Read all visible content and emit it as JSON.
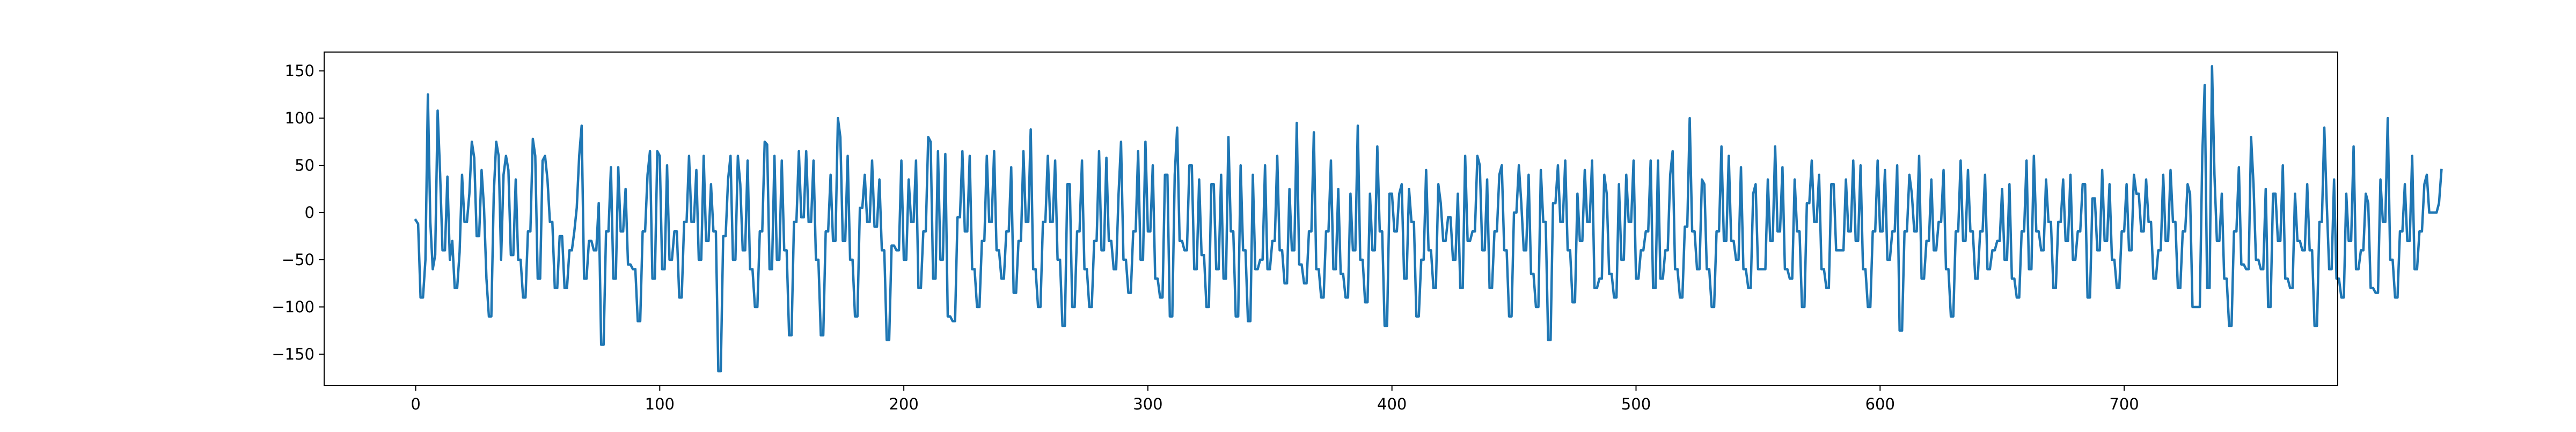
{
  "chart_data": {
    "type": "line",
    "title": "",
    "xlabel": "",
    "ylabel": "",
    "xlim": [
      -37.5,
      787.5
    ],
    "ylim": [
      -183,
      170
    ],
    "x_ticks": [
      0,
      100,
      200,
      300,
      400,
      500,
      600,
      700
    ],
    "y_ticks": [
      -150,
      -100,
      -50,
      0,
      50,
      100,
      150
    ],
    "x_tick_labels": [
      "0",
      "100",
      "200",
      "300",
      "400",
      "500",
      "600",
      "700"
    ],
    "y_tick_labels": [
      "−150",
      "−100",
      "−50",
      "0",
      "50",
      "100",
      "150"
    ],
    "grid": false,
    "legend": "none",
    "line_color": "#1f77b4",
    "series": [
      {
        "x_start": 0,
        "x_step": 1,
        "values": [
          -8,
          -12,
          -90,
          -90,
          -50,
          125,
          -10,
          -60,
          -45,
          108,
          42,
          -40,
          -40,
          38,
          -50,
          -30,
          -80,
          -80,
          -42,
          40,
          -10,
          -10,
          20,
          75,
          58,
          -25,
          -25,
          45,
          5,
          -70,
          -110,
          -110,
          20,
          75,
          60,
          -50,
          40,
          60,
          45,
          -45,
          -45,
          35,
          -50,
          -50,
          -90,
          -90,
          -20,
          -20,
          78,
          60,
          -70,
          -70,
          55,
          60,
          35,
          -10,
          -10,
          -80,
          -80,
          -25,
          -25,
          -80,
          -80,
          -40,
          -40,
          -20,
          5,
          60,
          92,
          -70,
          -70,
          -30,
          -30,
          -40,
          -40,
          10,
          -140,
          -140,
          -20,
          -20,
          48,
          -70,
          -70,
          48,
          -20,
          -20,
          25,
          -55,
          -55,
          -60,
          -60,
          -115,
          -115,
          -20,
          -20,
          40,
          65,
          -70,
          -70,
          65,
          60,
          -60,
          -60,
          50,
          -50,
          -50,
          -20,
          -20,
          -90,
          -90,
          -10,
          -10,
          60,
          -10,
          -10,
          45,
          -50,
          -50,
          60,
          -30,
          -30,
          30,
          -20,
          -20,
          -168,
          -168,
          -25,
          -25,
          35,
          60,
          -50,
          -50,
          60,
          30,
          -40,
          -40,
          55,
          -60,
          -60,
          -100,
          -100,
          -20,
          -20,
          75,
          72,
          -60,
          -60,
          60,
          -50,
          -50,
          55,
          -40,
          -40,
          -130,
          -130,
          -10,
          -10,
          65,
          -5,
          -5,
          65,
          -10,
          -10,
          55,
          -50,
          -50,
          -130,
          -130,
          -20,
          -20,
          40,
          -30,
          -30,
          100,
          80,
          -30,
          -30,
          60,
          -50,
          -50,
          -110,
          -110,
          5,
          5,
          40,
          -10,
          -10,
          55,
          -15,
          -15,
          35,
          -40,
          -40,
          -135,
          -135,
          -35,
          -35,
          -40,
          -40,
          55,
          -50,
          -50,
          35,
          -10,
          -10,
          55,
          -80,
          -80,
          -20,
          -20,
          80,
          75,
          -70,
          -70,
          65,
          -50,
          -50,
          62,
          -110,
          -110,
          -115,
          -115,
          -5,
          -5,
          65,
          -20,
          -20,
          60,
          -60,
          -60,
          -100,
          -100,
          -30,
          -30,
          60,
          -10,
          -10,
          65,
          -40,
          -40,
          -70,
          -70,
          -20,
          -20,
          48,
          -85,
          -85,
          -30,
          -30,
          65,
          -10,
          -10,
          88,
          -60,
          -60,
          -100,
          -100,
          -10,
          -10,
          60,
          -10,
          -10,
          55,
          -50,
          -50,
          -120,
          -120,
          30,
          30,
          -100,
          -100,
          -20,
          -20,
          55,
          -60,
          -60,
          -100,
          -100,
          -30,
          -30,
          65,
          -40,
          -40,
          58,
          -30,
          -30,
          -60,
          -60,
          20,
          75,
          -50,
          -50,
          -85,
          -85,
          -20,
          -20,
          65,
          -50,
          -50,
          75,
          -20,
          -20,
          50,
          -70,
          -70,
          -90,
          -90,
          40,
          40,
          -110,
          -110,
          40,
          90,
          -30,
          -30,
          -40,
          -40,
          50,
          50,
          -60,
          -60,
          35,
          -45,
          -45,
          -100,
          -100,
          30,
          30,
          -60,
          -60,
          40,
          -70,
          -70,
          80,
          -20,
          -20,
          -110,
          -110,
          50,
          -40,
          -40,
          -115,
          -115,
          40,
          -60,
          -60,
          -50,
          -50,
          50,
          -60,
          -60,
          -30,
          -30,
          60,
          -40,
          -40,
          -75,
          -75,
          25,
          -40,
          -40,
          95,
          -55,
          -55,
          -75,
          -75,
          -20,
          -20,
          85,
          -60,
          -60,
          -90,
          -90,
          -20,
          -20,
          55,
          -60,
          -60,
          25,
          -65,
          -65,
          -90,
          -90,
          20,
          -40,
          -40,
          92,
          -50,
          -50,
          -95,
          -95,
          20,
          -40,
          -40,
          70,
          -20,
          -20,
          -120,
          -120,
          20,
          20,
          -20,
          -20,
          20,
          30,
          -70,
          -70,
          25,
          -10,
          -10,
          -110,
          -110,
          -50,
          -50,
          45,
          -40,
          -40,
          -80,
          -80,
          30,
          10,
          -30,
          -30,
          -5,
          -5,
          -50,
          -50,
          20,
          -80,
          -80,
          60,
          -30,
          -30,
          -20,
          -20,
          60,
          50,
          -40,
          -40,
          35,
          -80,
          -80,
          -20,
          -20,
          40,
          50,
          -40,
          -40,
          -110,
          -110,
          0,
          0,
          50,
          10,
          -40,
          -40,
          40,
          -65,
          -65,
          -100,
          -100,
          45,
          -10,
          -10,
          -135,
          -135,
          10,
          10,
          50,
          -10,
          -10,
          55,
          -40,
          -40,
          -95,
          -95,
          20,
          -30,
          -30,
          45,
          -10,
          -10,
          55,
          -80,
          -80,
          -70,
          -70,
          40,
          20,
          -65,
          -65,
          -90,
          -90,
          30,
          -50,
          -50,
          40,
          -10,
          -10,
          55,
          -70,
          -70,
          -40,
          -40,
          -20,
          -20,
          55,
          -80,
          -80,
          55,
          -70,
          -70,
          -40,
          -40,
          40,
          65,
          -60,
          -60,
          -90,
          -90,
          -15,
          -15,
          100,
          -20,
          -20,
          -60,
          -60,
          35,
          30,
          -60,
          -60,
          -100,
          -100,
          -20,
          -20,
          70,
          -30,
          -30,
          60,
          -30,
          -30,
          -50,
          -50,
          48,
          -60,
          -60,
          -80,
          -80,
          20,
          30,
          -60,
          -60,
          -60,
          -60,
          35,
          -30,
          -30,
          70,
          -20,
          -20,
          48,
          -60,
          -60,
          -70,
          -70,
          35,
          -20,
          -20,
          -100,
          -100,
          10,
          10,
          55,
          -10,
          -10,
          40,
          -60,
          -60,
          -80,
          -80,
          30,
          30,
          -40,
          -40,
          -40,
          -40,
          35,
          -20,
          -20,
          55,
          -30,
          -30,
          50,
          -60,
          -60,
          -100,
          -100,
          -20,
          -20,
          55,
          -20,
          -20,
          45,
          -50,
          -50,
          -20,
          -20,
          50,
          -125,
          -125,
          -20,
          -20,
          40,
          20,
          -20,
          -20,
          60,
          -70,
          -70,
          -30,
          -30,
          35,
          -40,
          -40,
          -10,
          -10,
          45,
          -60,
          -60,
          -110,
          -110,
          -20,
          -20,
          55,
          -30,
          -30,
          45,
          -20,
          -20,
          -70,
          -70,
          -20,
          -20,
          40,
          -60,
          -60,
          -40,
          -40,
          -30,
          -30,
          25,
          -50,
          -50,
          30,
          -70,
          -70,
          -90,
          -90,
          -20,
          -20,
          55,
          -60,
          -60,
          60,
          -20,
          -20,
          -40,
          -40,
          35,
          -10,
          -10,
          -80,
          -80,
          -10,
          -10,
          35,
          -30,
          -30,
          40,
          -50,
          -50,
          -20,
          -20,
          30,
          30,
          -90,
          -90,
          15,
          15,
          -40,
          -40,
          45,
          -30,
          -30,
          30,
          -50,
          -50,
          -80,
          -80,
          -20,
          -20,
          30,
          -40,
          -40,
          40,
          20,
          20,
          -20,
          -20,
          35,
          -10,
          -10,
          -70,
          -70,
          -40,
          -40,
          40,
          -30,
          -30,
          45,
          -10,
          -10,
          -80,
          -80,
          -20,
          -20,
          30,
          20,
          -100,
          -100,
          -100,
          -100,
          60,
          135,
          -80,
          -80,
          155,
          40,
          -30,
          -30,
          20,
          -70,
          -70,
          -120,
          -120,
          -20,
          -20,
          48,
          -55,
          -55,
          -60,
          -60,
          80,
          30,
          -50,
          -50,
          -60,
          -60,
          25,
          -100,
          -100,
          20,
          20,
          -30,
          -30,
          50,
          -70,
          -70,
          -80,
          -80,
          20,
          -30,
          -30,
          -40,
          -40,
          30,
          -40,
          -40,
          -120,
          -120,
          -10,
          -10,
          90,
          10,
          -60,
          -60,
          35,
          -70,
          -70,
          -90,
          -90,
          20,
          -30,
          -30,
          70,
          -60,
          -60,
          -40,
          -40,
          20,
          10,
          -80,
          -80,
          -85,
          -85,
          35,
          -10,
          -10,
          100,
          -50,
          -50,
          -90,
          -90,
          -20,
          -20,
          30,
          -30,
          -30,
          60,
          -60,
          -60,
          -20,
          -20,
          30,
          40,
          0,
          0,
          0,
          0,
          10,
          45
        ]
      }
    ]
  }
}
